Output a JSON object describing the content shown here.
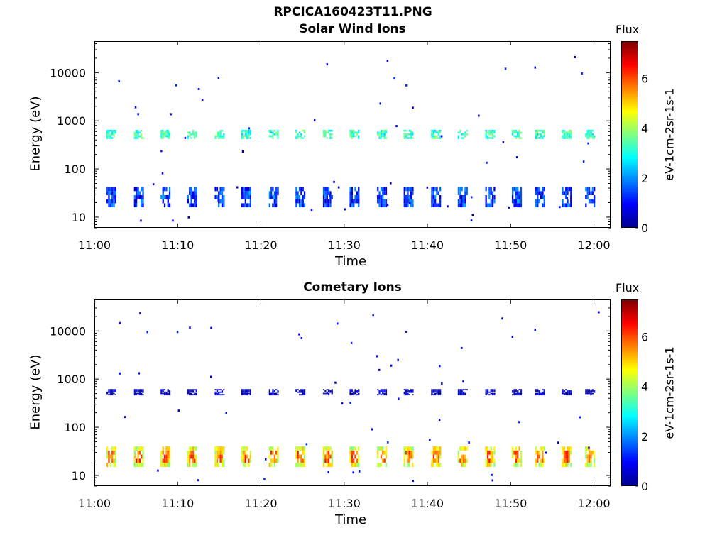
{
  "suptitle": "RPCICA160423T11.PNG",
  "colors": {
    "colormap": "jet"
  },
  "chart_data": [
    {
      "type": "heatmap",
      "title": "Solar Wind Ions",
      "xlabel": "Time",
      "ylabel": "Energy (eV)",
      "yscale": "log",
      "xlim": [
        "11:00",
        "12:02"
      ],
      "ylim": [
        6,
        45000
      ],
      "xticks": [
        "11:00",
        "11:10",
        "11:20",
        "11:30",
        "11:40",
        "11:50",
        "12:00"
      ],
      "yticks": [
        "10",
        "100",
        "1000",
        "10000"
      ],
      "colorbar": {
        "label": "Flux",
        "units_label": "eV-1cm-2sr-1s-1",
        "ticks": [
          "0",
          "2",
          "4",
          "6"
        ],
        "range": [
          0,
          7.5
        ]
      },
      "bursts": {
        "minutes": [
          2,
          5.3,
          8.5,
          11.7,
          15,
          18.2,
          21.5,
          24.7,
          28,
          31.2,
          34.5,
          37.7,
          41,
          44.2,
          47.5,
          50.7,
          53.5,
          56.7,
          59.5
        ],
        "bands": [
          {
            "energy_lo": 16,
            "energy_hi": 42,
            "flux": 1.3
          },
          {
            "energy_lo": 420,
            "energy_hi": 650,
            "flux": 3.2
          }
        ]
      }
    },
    {
      "type": "heatmap",
      "title": "Cometary Ions",
      "xlabel": "Time",
      "ylabel": "Energy (eV)",
      "yscale": "log",
      "xlim": [
        "11:00",
        "12:02"
      ],
      "ylim": [
        6,
        45000
      ],
      "xticks": [
        "11:00",
        "11:10",
        "11:20",
        "11:30",
        "11:40",
        "11:50",
        "12:00"
      ],
      "yticks": [
        "10",
        "100",
        "1000",
        "10000"
      ],
      "colorbar": {
        "label": "Flux",
        "units_label": "eV-1cm-2sr-1s-1",
        "ticks": [
          "0",
          "2",
          "4",
          "6"
        ],
        "range": [
          0,
          7.5
        ]
      },
      "bursts": {
        "minutes": [
          2,
          5.3,
          8.5,
          11.7,
          15,
          18.2,
          21.5,
          24.7,
          28,
          31.2,
          34.5,
          37.7,
          41,
          44.2,
          47.5,
          50.7,
          53.5,
          56.7,
          59.5
        ],
        "bands": [
          {
            "energy_lo": 15,
            "energy_hi": 40,
            "flux": 4.5
          },
          {
            "energy_lo": 460,
            "energy_hi": 620,
            "flux": 0.4
          }
        ]
      }
    }
  ]
}
